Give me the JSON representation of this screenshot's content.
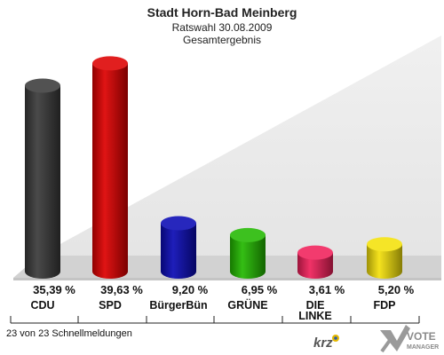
{
  "header": {
    "title": "Stadt Horn-Bad Meinberg",
    "subtitle": "Ratswahl 30.08.2009",
    "subtitle2": "Gesamtergebnis"
  },
  "chart_data": {
    "type": "bar",
    "title": "Stadt Horn-Bad Meinberg",
    "categories": [
      "CDU",
      "SPD",
      "BürgerBün",
      "GRÜNE",
      "DIE LINKE",
      "FDP"
    ],
    "category_lines": [
      [
        "CDU"
      ],
      [
        "SPD"
      ],
      [
        "BürgerBün"
      ],
      [
        "GRÜNE"
      ],
      [
        "DIE",
        "LINKE"
      ],
      [
        "FDP"
      ]
    ],
    "values": [
      35.39,
      39.63,
      9.2,
      6.95,
      3.61,
      5.2
    ],
    "value_labels": [
      "35,39 %",
      "39,63 %",
      "9,20 %",
      "6,95 %",
      "3,61 %",
      "5,20 %"
    ],
    "colors": [
      "#3a3a3a",
      "#dd0000",
      "#0a0ab4",
      "#22b800",
      "#f0205a",
      "#f4e10a"
    ],
    "ylim": [
      0,
      40
    ],
    "grid": false,
    "legend": "none"
  },
  "footer": {
    "status": "23 von 23 Schnellmeldungen",
    "logo_krz": "krz",
    "logo_vote": "VOTE",
    "logo_manager": "MANAGER"
  }
}
